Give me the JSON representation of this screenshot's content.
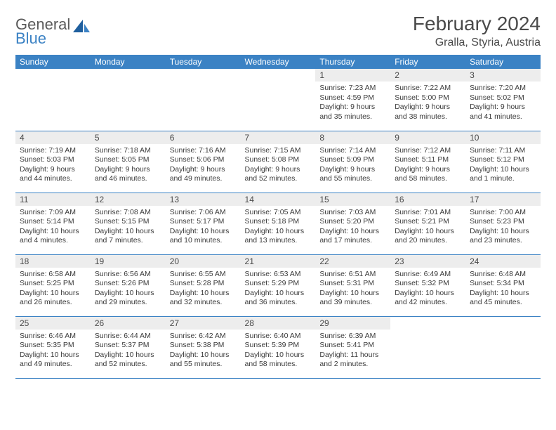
{
  "logo": {
    "line1": "General",
    "line2": "Blue"
  },
  "title": "February 2024",
  "location": "Gralla, Styria, Austria",
  "colors": {
    "header_bg": "#3b82c4",
    "header_fg": "#ffffff",
    "daynum_bg": "#ededed",
    "border": "#3b82c4",
    "text": "#3a3a3a",
    "title": "#4a4a4a"
  },
  "weekdays": [
    "Sunday",
    "Monday",
    "Tuesday",
    "Wednesday",
    "Thursday",
    "Friday",
    "Saturday"
  ],
  "weeks": [
    [
      null,
      null,
      null,
      null,
      {
        "n": "1",
        "sr": "Sunrise: 7:23 AM",
        "ss": "Sunset: 4:59 PM",
        "d1": "Daylight: 9 hours",
        "d2": "and 35 minutes."
      },
      {
        "n": "2",
        "sr": "Sunrise: 7:22 AM",
        "ss": "Sunset: 5:00 PM",
        "d1": "Daylight: 9 hours",
        "d2": "and 38 minutes."
      },
      {
        "n": "3",
        "sr": "Sunrise: 7:20 AM",
        "ss": "Sunset: 5:02 PM",
        "d1": "Daylight: 9 hours",
        "d2": "and 41 minutes."
      }
    ],
    [
      {
        "n": "4",
        "sr": "Sunrise: 7:19 AM",
        "ss": "Sunset: 5:03 PM",
        "d1": "Daylight: 9 hours",
        "d2": "and 44 minutes."
      },
      {
        "n": "5",
        "sr": "Sunrise: 7:18 AM",
        "ss": "Sunset: 5:05 PM",
        "d1": "Daylight: 9 hours",
        "d2": "and 46 minutes."
      },
      {
        "n": "6",
        "sr": "Sunrise: 7:16 AM",
        "ss": "Sunset: 5:06 PM",
        "d1": "Daylight: 9 hours",
        "d2": "and 49 minutes."
      },
      {
        "n": "7",
        "sr": "Sunrise: 7:15 AM",
        "ss": "Sunset: 5:08 PM",
        "d1": "Daylight: 9 hours",
        "d2": "and 52 minutes."
      },
      {
        "n": "8",
        "sr": "Sunrise: 7:14 AM",
        "ss": "Sunset: 5:09 PM",
        "d1": "Daylight: 9 hours",
        "d2": "and 55 minutes."
      },
      {
        "n": "9",
        "sr": "Sunrise: 7:12 AM",
        "ss": "Sunset: 5:11 PM",
        "d1": "Daylight: 9 hours",
        "d2": "and 58 minutes."
      },
      {
        "n": "10",
        "sr": "Sunrise: 7:11 AM",
        "ss": "Sunset: 5:12 PM",
        "d1": "Daylight: 10 hours",
        "d2": "and 1 minute."
      }
    ],
    [
      {
        "n": "11",
        "sr": "Sunrise: 7:09 AM",
        "ss": "Sunset: 5:14 PM",
        "d1": "Daylight: 10 hours",
        "d2": "and 4 minutes."
      },
      {
        "n": "12",
        "sr": "Sunrise: 7:08 AM",
        "ss": "Sunset: 5:15 PM",
        "d1": "Daylight: 10 hours",
        "d2": "and 7 minutes."
      },
      {
        "n": "13",
        "sr": "Sunrise: 7:06 AM",
        "ss": "Sunset: 5:17 PM",
        "d1": "Daylight: 10 hours",
        "d2": "and 10 minutes."
      },
      {
        "n": "14",
        "sr": "Sunrise: 7:05 AM",
        "ss": "Sunset: 5:18 PM",
        "d1": "Daylight: 10 hours",
        "d2": "and 13 minutes."
      },
      {
        "n": "15",
        "sr": "Sunrise: 7:03 AM",
        "ss": "Sunset: 5:20 PM",
        "d1": "Daylight: 10 hours",
        "d2": "and 17 minutes."
      },
      {
        "n": "16",
        "sr": "Sunrise: 7:01 AM",
        "ss": "Sunset: 5:21 PM",
        "d1": "Daylight: 10 hours",
        "d2": "and 20 minutes."
      },
      {
        "n": "17",
        "sr": "Sunrise: 7:00 AM",
        "ss": "Sunset: 5:23 PM",
        "d1": "Daylight: 10 hours",
        "d2": "and 23 minutes."
      }
    ],
    [
      {
        "n": "18",
        "sr": "Sunrise: 6:58 AM",
        "ss": "Sunset: 5:25 PM",
        "d1": "Daylight: 10 hours",
        "d2": "and 26 minutes."
      },
      {
        "n": "19",
        "sr": "Sunrise: 6:56 AM",
        "ss": "Sunset: 5:26 PM",
        "d1": "Daylight: 10 hours",
        "d2": "and 29 minutes."
      },
      {
        "n": "20",
        "sr": "Sunrise: 6:55 AM",
        "ss": "Sunset: 5:28 PM",
        "d1": "Daylight: 10 hours",
        "d2": "and 32 minutes."
      },
      {
        "n": "21",
        "sr": "Sunrise: 6:53 AM",
        "ss": "Sunset: 5:29 PM",
        "d1": "Daylight: 10 hours",
        "d2": "and 36 minutes."
      },
      {
        "n": "22",
        "sr": "Sunrise: 6:51 AM",
        "ss": "Sunset: 5:31 PM",
        "d1": "Daylight: 10 hours",
        "d2": "and 39 minutes."
      },
      {
        "n": "23",
        "sr": "Sunrise: 6:49 AM",
        "ss": "Sunset: 5:32 PM",
        "d1": "Daylight: 10 hours",
        "d2": "and 42 minutes."
      },
      {
        "n": "24",
        "sr": "Sunrise: 6:48 AM",
        "ss": "Sunset: 5:34 PM",
        "d1": "Daylight: 10 hours",
        "d2": "and 45 minutes."
      }
    ],
    [
      {
        "n": "25",
        "sr": "Sunrise: 6:46 AM",
        "ss": "Sunset: 5:35 PM",
        "d1": "Daylight: 10 hours",
        "d2": "and 49 minutes."
      },
      {
        "n": "26",
        "sr": "Sunrise: 6:44 AM",
        "ss": "Sunset: 5:37 PM",
        "d1": "Daylight: 10 hours",
        "d2": "and 52 minutes."
      },
      {
        "n": "27",
        "sr": "Sunrise: 6:42 AM",
        "ss": "Sunset: 5:38 PM",
        "d1": "Daylight: 10 hours",
        "d2": "and 55 minutes."
      },
      {
        "n": "28",
        "sr": "Sunrise: 6:40 AM",
        "ss": "Sunset: 5:39 PM",
        "d1": "Daylight: 10 hours",
        "d2": "and 58 minutes."
      },
      {
        "n": "29",
        "sr": "Sunrise: 6:39 AM",
        "ss": "Sunset: 5:41 PM",
        "d1": "Daylight: 11 hours",
        "d2": "and 2 minutes."
      },
      null,
      null
    ]
  ]
}
